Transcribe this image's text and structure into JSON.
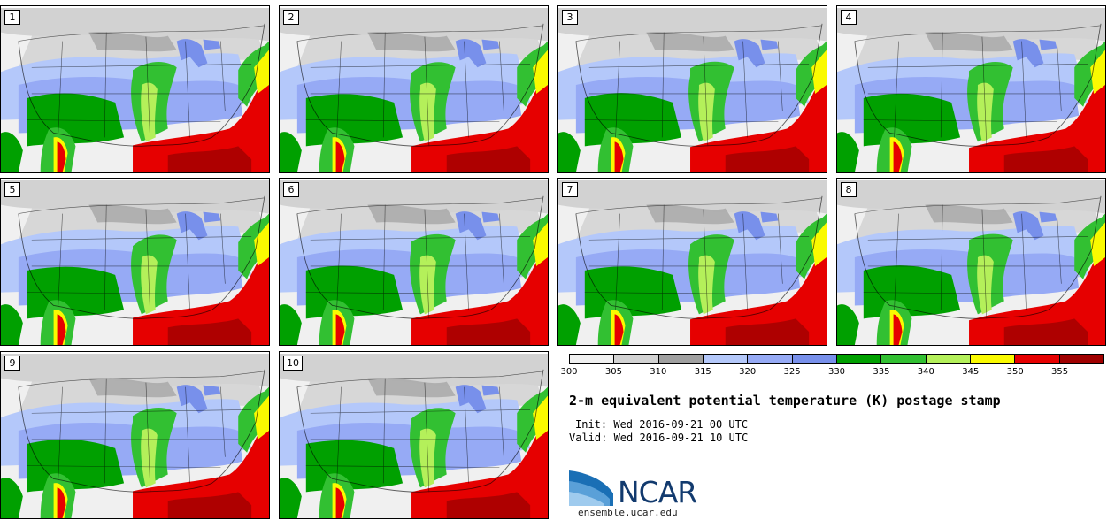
{
  "members": [
    {
      "label": "1"
    },
    {
      "label": "2"
    },
    {
      "label": "3"
    },
    {
      "label": "4"
    },
    {
      "label": "5"
    },
    {
      "label": "6"
    },
    {
      "label": "7"
    },
    {
      "label": "8"
    },
    {
      "label": "9"
    },
    {
      "label": "10"
    }
  ],
  "colorbar": {
    "colors": [
      "#f0f0f0",
      "#d2d2d2",
      "#a0a0a0",
      "#b4c8fa",
      "#96aaf5",
      "#7890eb",
      "#00a000",
      "#32c032",
      "#b4f05a",
      "#fafa00",
      "#e60000",
      "#a00000"
    ],
    "ticks": [
      "300",
      "305",
      "310",
      "315",
      "320",
      "325",
      "330",
      "335",
      "340",
      "345",
      "350",
      "355"
    ]
  },
  "title": "2-m equivalent potential temperature (K) postage stamp",
  "init": "Init: Wed 2016-09-21 00 UTC",
  "valid": "Valid: Wed 2016-09-21 10 UTC",
  "logo": {
    "text": "NCAR"
  },
  "website": "ensemble.ucar.edu"
}
